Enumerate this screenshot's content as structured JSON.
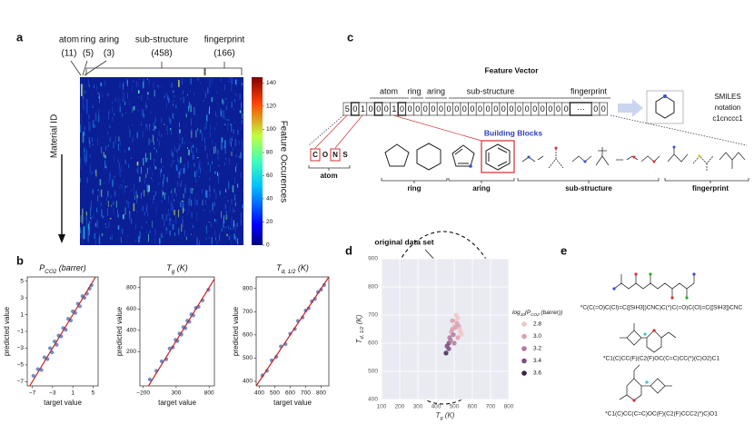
{
  "panel_labels": [
    "a",
    "b",
    "c",
    "d",
    "e"
  ],
  "heatmap": {
    "groups": [
      {
        "name": "atom",
        "count": "(11)"
      },
      {
        "name": "ring",
        "count": "(5)"
      },
      {
        "name": "aring",
        "count": "(3)"
      },
      {
        "name": "sub-structure",
        "count": "(458)"
      },
      {
        "name": "fingerprint",
        "count": "(166)"
      }
    ],
    "y_label": "Material ID",
    "colorbar_label": "Feature Occurences",
    "colorbar_lim": [
      0,
      145
    ],
    "colorbar_ticks": [
      0,
      20,
      40,
      60,
      80,
      100,
      120,
      140
    ]
  },
  "feature_vector": {
    "title": "Feature Vector",
    "groups": [
      "atom",
      "ring",
      "aring",
      "sub-structure",
      "fingerprint"
    ],
    "cells": [
      "5",
      "0",
      "1",
      "0",
      "0",
      "0",
      "1",
      "0",
      "0",
      "0",
      "0",
      "0",
      "0",
      "0",
      "0",
      "0",
      "0",
      "0",
      "0",
      "0",
      "0",
      "0",
      "0",
      "0",
      "0",
      "0",
      "0",
      "0",
      "0",
      "···",
      "0",
      "0"
    ],
    "smiles": [
      "SMILES",
      "notation",
      "c1cnccc1"
    ]
  },
  "building_blocks": {
    "title": "Building Blocks",
    "atoms": [
      "C",
      "O",
      "N",
      "S"
    ],
    "groups": [
      "atom",
      "ring",
      "aring",
      "sub-structure",
      "fingerprint"
    ]
  },
  "chart_data": [
    {
      "type": "scatter",
      "title": [
        "P",
        "CO2",
        " (barrer)"
      ],
      "x_label": "target value",
      "y_label": "predicted value",
      "xlim": [
        -8,
        6
      ],
      "ylim": [
        -7.5,
        5.5
      ],
      "xticks": [
        {
          "value": -7,
          "label": "−7"
        },
        {
          "value": -3,
          "label": "−3"
        },
        1,
        5
      ],
      "yticks": [
        {
          "value": -7,
          "label": "−7"
        },
        {
          "value": -5,
          "label": "−5"
        },
        {
          "value": -3,
          "label": "−3"
        },
        {
          "value": -1,
          "label": "−1"
        },
        1,
        3,
        5
      ],
      "x": [
        -6.8,
        -5.9,
        -5.2,
        -4.6,
        -4.0,
        -3.5,
        -3.1,
        -2.6,
        -2.2,
        -1.8,
        -1.3,
        -0.9,
        -0.4,
        0.1,
        0.6,
        1.0,
        1.5,
        2.0,
        2.4,
        2.9,
        3.3,
        3.8,
        4.3,
        4.7
      ],
      "y": [
        -6.3,
        -5.5,
        -5.6,
        -4.1,
        -4.3,
        -3.0,
        -3.5,
        -2.2,
        -2.6,
        -1.5,
        -1.6,
        -0.6,
        -0.8,
        0.5,
        0.3,
        1.4,
        1.2,
        2.3,
        2.0,
        3.2,
        3.0,
        3.5,
        4.1,
        4.5
      ],
      "color": "#5b86c4",
      "fit_color": "#cc2222",
      "grid": false
    },
    {
      "type": "scatter",
      "title": [
        "T",
        "g",
        " (K)"
      ],
      "x_label": "target value",
      "y_label": "predicted value",
      "xlim": [
        -250,
        880
      ],
      "ylim": [
        -120,
        900
      ],
      "xticks": [
        {
          "value": -200,
          "label": "−200"
        },
        300,
        800
      ],
      "yticks": [
        200,
        400,
        600,
        800
      ],
      "x": [
        -100,
        0,
        80,
        150,
        200,
        250,
        290,
        320,
        350,
        380,
        410,
        440,
        470,
        500,
        530,
        560,
        600,
        640,
        700,
        790
      ],
      "y": [
        -60,
        20,
        110,
        130,
        230,
        240,
        310,
        300,
        370,
        360,
        430,
        420,
        490,
        480,
        550,
        540,
        610,
        620,
        680,
        780
      ],
      "color": "#5b86c4",
      "fit_color": "#cc2222",
      "grid": false
    },
    {
      "type": "scatter",
      "title": [
        "T",
        "d, 1/2",
        " (K)"
      ],
      "x_label": "target value",
      "y_label": "predicted value",
      "xlim": [
        380,
        850
      ],
      "ylim": [
        380,
        850
      ],
      "xticks": [
        400,
        500,
        600,
        700,
        800
      ],
      "yticks": [
        400,
        500,
        600,
        700,
        800
      ],
      "x": [
        420,
        450,
        480,
        510,
        540,
        570,
        600,
        630,
        650,
        680,
        700,
        720,
        740,
        760,
        780,
        800,
        820
      ],
      "y": [
        425,
        445,
        490,
        505,
        550,
        560,
        605,
        625,
        660,
        675,
        705,
        715,
        745,
        755,
        785,
        795,
        815
      ],
      "color": "#5b86c4",
      "fit_color": "#cc2222",
      "grid": false
    },
    {
      "type": "scatter",
      "x_label": [
        "T",
        "g",
        " (K)"
      ],
      "y_label": [
        "T",
        "d, 1/2",
        " (K)"
      ],
      "annotation": "original data set",
      "xlim": [
        100,
        800
      ],
      "ylim": [
        400,
        900
      ],
      "xticks": [
        100,
        200,
        300,
        400,
        500,
        600,
        700,
        800
      ],
      "yticks": [
        400,
        500,
        600,
        700,
        800,
        900
      ],
      "x": [
        455,
        460,
        470,
        475,
        480,
        485,
        490,
        495,
        500,
        505,
        510,
        515,
        520,
        525,
        530,
        535,
        540,
        470,
        500,
        520,
        490,
        510
      ],
      "y": [
        565,
        590,
        600,
        620,
        610,
        640,
        650,
        630,
        660,
        655,
        680,
        670,
        690,
        660,
        650,
        640,
        630,
        580,
        600,
        620,
        680,
        700
      ],
      "color_values": [
        3.6,
        3.4,
        3.5,
        3.2,
        3.3,
        3.0,
        3.1,
        3.2,
        2.9,
        3.0,
        2.8,
        3.0,
        2.9,
        3.1,
        2.8,
        2.9,
        2.8,
        3.5,
        3.2,
        3.0,
        3.1,
        2.9
      ],
      "legend": {
        "title": [
          "log",
          "10",
          "(P",
          "CO2",
          " (barrer))"
        ],
        "entries": [
          {
            "value": 2.8,
            "color": "#eec5c5"
          },
          {
            "value": 3,
            "label": "3.0",
            "color": "#d9a0b0"
          },
          {
            "value": 3.2,
            "color": "#b3789b"
          },
          {
            "value": 3.4,
            "color": "#7d4d7c"
          },
          {
            "value": 3.6,
            "color": "#3d2450"
          }
        ]
      },
      "grid": true,
      "background": "#eaeaf2"
    }
  ],
  "molecules": {
    "smiles": [
      "*C(C(=O)C(Cl)=C([SiH3])CNC)C(*)C(=O)C(Cl)=C([SiH3])CNC",
      "*C1(C)CC(F)(C2(F)OC(C=C)CC(*)(C)O2)C1",
      "*C1(C)CC(C=C)OC(F)(C2(F)CCC2(*)C)O1"
    ]
  }
}
